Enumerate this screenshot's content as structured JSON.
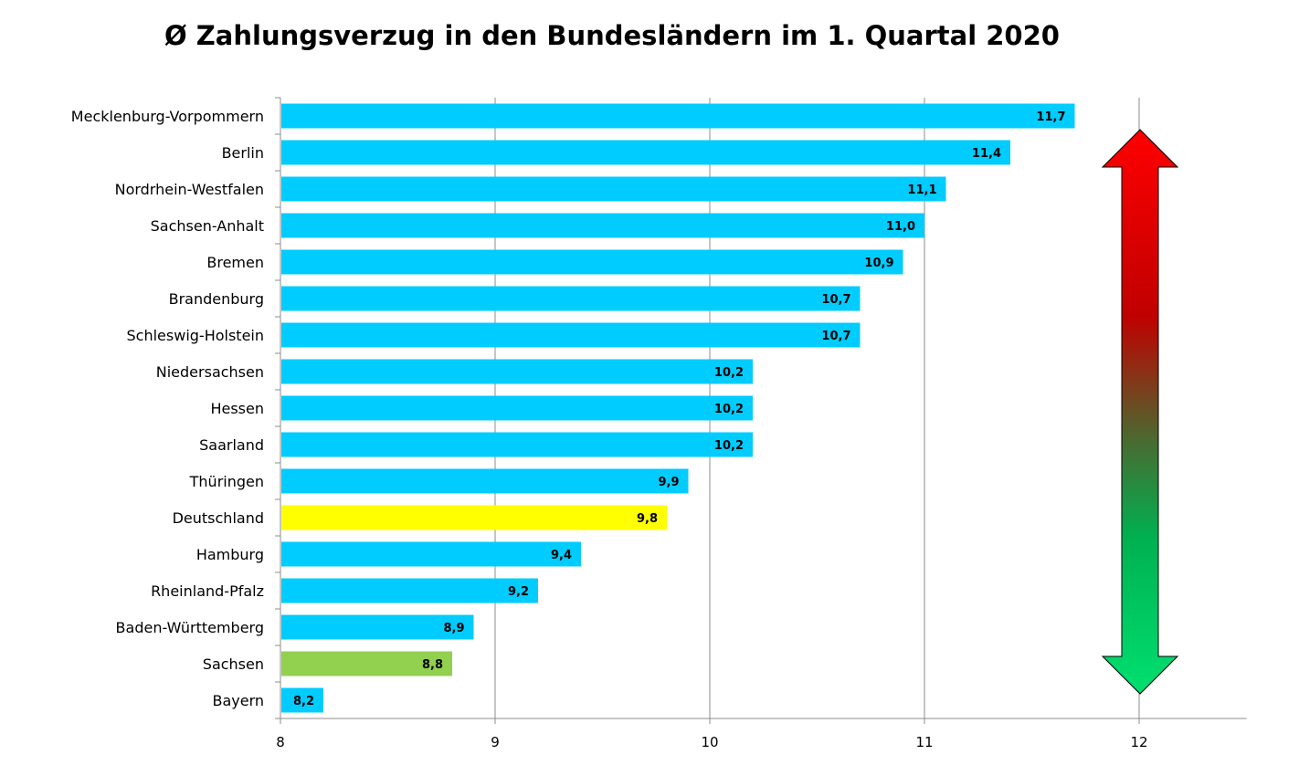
{
  "chart_data": {
    "type": "bar",
    "orientation": "horizontal",
    "title": "Ø Zahlungsverzug in den Bundesländern im 1. Quartal 2020",
    "xlabel": "",
    "ylabel": "",
    "xlim": [
      8,
      12.5
    ],
    "xticks": [
      8,
      9,
      10,
      11,
      12
    ],
    "grid": "vertical",
    "legend": "none",
    "categories": [
      "Mecklenburg-Vorpommern",
      "Berlin",
      "Nordrhein-Westfalen",
      "Sachsen-Anhalt",
      "Bremen",
      "Brandenburg",
      "Schleswig-Holstein",
      "Niedersachsen",
      "Hessen",
      "Saarland",
      "Thüringen",
      "Deutschland",
      "Hamburg",
      "Rheinland-Pfalz",
      "Baden-Württemberg",
      "Sachsen",
      "Bayern"
    ],
    "values": [
      11.7,
      11.4,
      11.1,
      11.0,
      10.9,
      10.7,
      10.7,
      10.2,
      10.2,
      10.2,
      9.9,
      9.8,
      9.4,
      9.2,
      8.9,
      8.8,
      8.2
    ],
    "value_labels": [
      "11,7",
      "11,4",
      "11,1",
      "11,0",
      "10,9",
      "10,7",
      "10,7",
      "10,2",
      "10,2",
      "10,2",
      "9,9",
      "9,8",
      "9,4",
      "9,2",
      "8,9",
      "8,8",
      "8,2"
    ],
    "bar_colors": [
      "#00ccff",
      "#00ccff",
      "#00ccff",
      "#00ccff",
      "#00ccff",
      "#00ccff",
      "#00ccff",
      "#00ccff",
      "#00ccff",
      "#00ccff",
      "#00ccff",
      "#ffff00",
      "#00ccff",
      "#00ccff",
      "#00ccff",
      "#92d050",
      "#00ccff"
    ],
    "annotation": {
      "shape": "double-arrow",
      "gradient_top_to_bottom": [
        "#ff0000",
        "#c00000",
        "#4a6a30",
        "#00b050",
        "#00e070"
      ]
    }
  }
}
